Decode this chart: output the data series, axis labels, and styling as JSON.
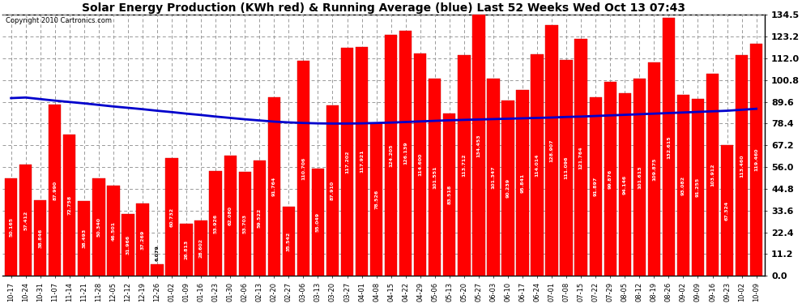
{
  "title": "Solar Energy Production (KWh red) & Running Average (blue) Last 52 Weeks Wed Oct 13 07:43",
  "copyright": "Copyright 2010 Cartronics.com",
  "bar_color": "#ff0000",
  "avg_color": "#0000cc",
  "grid_color": "#aaaaaa",
  "ylim": [
    0.0,
    134.5
  ],
  "yticks": [
    0.0,
    11.2,
    22.4,
    33.6,
    44.8,
    56.0,
    67.2,
    78.4,
    89.6,
    100.8,
    112.0,
    123.2,
    134.5
  ],
  "categories": [
    "10-17",
    "10-24",
    "10-31",
    "11-07",
    "11-14",
    "11-21",
    "11-28",
    "12-05",
    "12-12",
    "12-19",
    "12-26",
    "01-02",
    "01-09",
    "01-16",
    "01-23",
    "01-30",
    "02-06",
    "02-13",
    "02-20",
    "02-27",
    "03-06",
    "03-13",
    "03-20",
    "03-27",
    "04-01",
    "04-08",
    "04-15",
    "04-22",
    "04-29",
    "05-06",
    "05-13",
    "05-20",
    "05-27",
    "06-03",
    "06-10",
    "06-17",
    "06-24",
    "07-01",
    "07-08",
    "07-15",
    "07-22",
    "07-29",
    "08-05",
    "08-12",
    "08-19",
    "08-26",
    "09-02",
    "09-09",
    "09-16",
    "09-23",
    "10-02",
    "10-09"
  ],
  "bar_values": [
    50.165,
    57.412,
    38.846,
    87.99,
    72.758,
    38.493,
    50.34,
    46.501,
    31.966,
    37.269,
    6.079,
    60.732,
    26.813,
    28.602,
    53.926,
    62.08,
    53.703,
    59.522,
    91.764,
    35.542,
    110.706,
    55.049,
    87.91,
    117.202,
    117.921,
    78.526,
    124.205,
    126.139,
    114.6,
    101.551,
    83.518,
    113.712,
    134.453,
    101.347,
    90.239,
    95.841,
    114.014,
    128.907,
    111.096,
    121.764,
    91.897,
    99.876,
    94.146,
    101.613,
    109.875,
    132.615,
    93.082,
    91.255,
    103.912,
    67.324,
    113.46,
    119.46
  ],
  "running_avg": [
    91.5,
    91.8,
    91.0,
    90.2,
    89.5,
    88.8,
    88.0,
    87.2,
    86.5,
    85.8,
    85.0,
    84.3,
    83.5,
    82.8,
    82.0,
    81.3,
    80.6,
    80.0,
    79.4,
    79.0,
    78.7,
    78.5,
    78.4,
    78.4,
    78.5,
    78.7,
    78.9,
    79.2,
    79.5,
    79.8,
    80.1,
    80.3,
    80.5,
    80.7,
    80.9,
    81.1,
    81.3,
    81.5,
    81.8,
    82.0,
    82.3,
    82.6,
    82.9,
    83.2,
    83.5,
    83.8,
    84.1,
    84.4,
    84.7,
    85.0,
    85.5,
    86.0
  ]
}
